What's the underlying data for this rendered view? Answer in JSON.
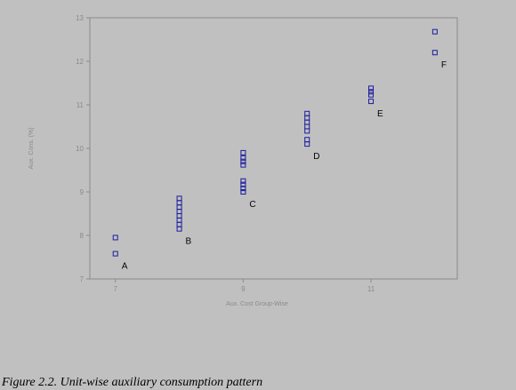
{
  "caption": "Figure 2.2.  Unit-wise auxiliary consumption pattern",
  "chart_data": {
    "type": "scatter",
    "title": "",
    "xlabel": "Aux. Cost Group-Wise",
    "ylabel": "Aux. Cons. (%)",
    "xlim": [
      6.6,
      12.35
    ],
    "ylim": [
      7,
      13
    ],
    "x_ticks": [
      7,
      9,
      11
    ],
    "y_ticks": [
      7,
      8,
      9,
      10,
      11,
      12,
      13
    ],
    "grid": false,
    "marker": "open-square",
    "marker_color": "#1c1ca0",
    "axis_text_color": "#8a8a8a",
    "frame_color": "#8a8a8a",
    "groups": [
      {
        "label": "A",
        "x": 7,
        "values": [
          7.95,
          7.58
        ]
      },
      {
        "label": "B",
        "x": 8,
        "values": [
          8.85,
          8.75,
          8.65,
          8.55,
          8.45,
          8.35,
          8.25,
          8.15
        ]
      },
      {
        "label": "C",
        "x": 9,
        "values": [
          9.9,
          9.78,
          9.7,
          9.62,
          9.25,
          9.17,
          9.08,
          9.0
        ]
      },
      {
        "label": "D",
        "x": 10,
        "values": [
          10.8,
          10.7,
          10.6,
          10.5,
          10.4,
          10.2,
          10.1
        ]
      },
      {
        "label": "E",
        "x": 11,
        "values": [
          11.38,
          11.3,
          11.23,
          11.08
        ]
      },
      {
        "label": "F",
        "x": 12,
        "values": [
          12.68,
          12.2
        ]
      }
    ]
  }
}
